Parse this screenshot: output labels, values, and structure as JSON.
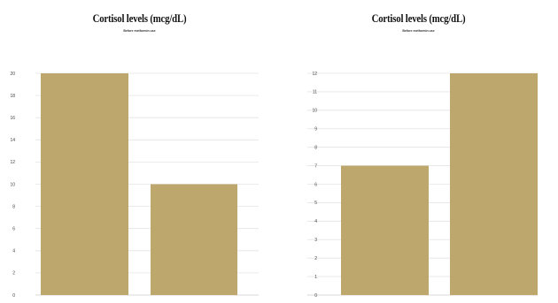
{
  "chart_data": [
    {
      "type": "bar",
      "title": "Cortisol levels  (mcg/dL)",
      "subtitle": "Before metformin use",
      "categories": [
        "",
        ""
      ],
      "values": [
        20,
        10
      ],
      "ylim": [
        0,
        20
      ],
      "yticks": [
        0,
        2,
        4,
        6,
        8,
        10,
        12,
        14,
        16,
        18,
        20
      ],
      "xlabel": "",
      "ylabel": "",
      "grid": true,
      "legend": "none",
      "bar_color": "#bda76d"
    },
    {
      "type": "bar",
      "title": "Cortisol levels  (mcg/dL)",
      "subtitle": "Before metformin use",
      "categories": [
        "",
        ""
      ],
      "values": [
        7,
        12
      ],
      "ylim": [
        0,
        12
      ],
      "yticks": [
        0,
        1,
        2,
        3,
        4,
        5,
        6,
        7,
        8,
        9,
        10,
        11,
        12
      ],
      "xlabel": "",
      "ylabel": "",
      "grid": true,
      "legend": "none",
      "bar_color": "#bda76d"
    }
  ]
}
